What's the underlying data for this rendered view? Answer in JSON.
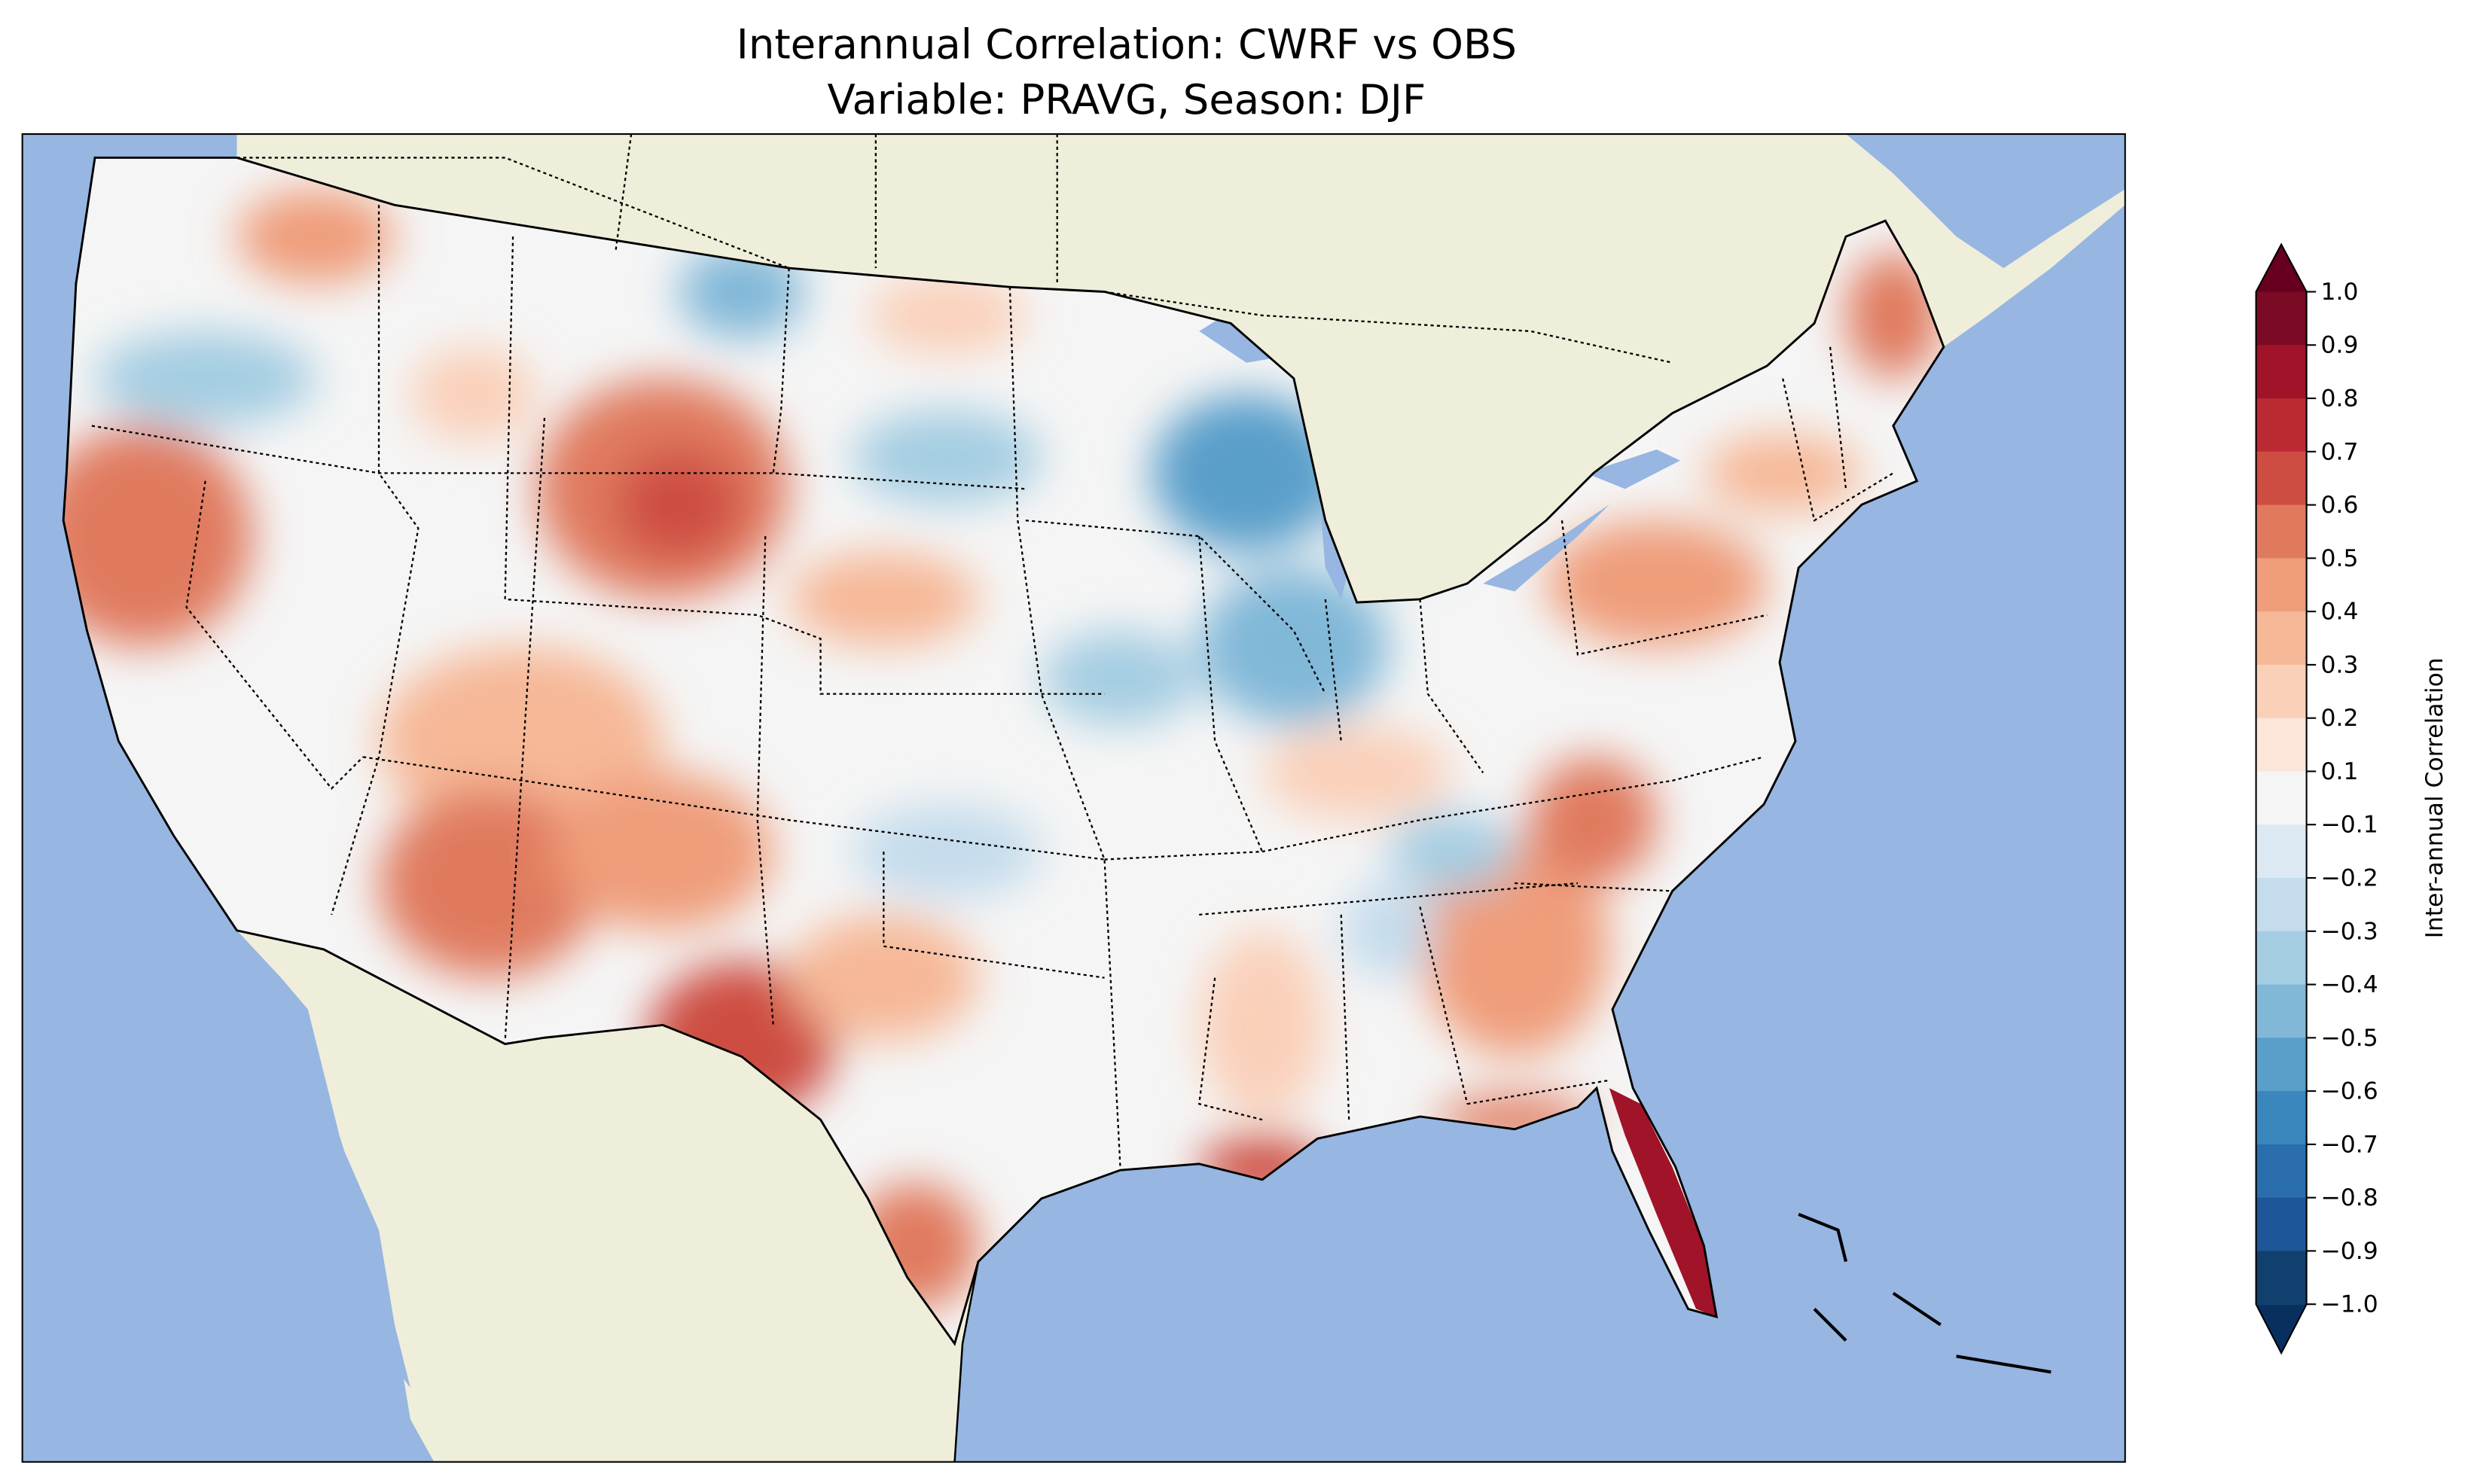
{
  "chart_data": {
    "type": "heatmap",
    "title": [
      "Interannual Correlation: CWRF vs OBS",
      "Variable: PRAVG, Season: DJF"
    ],
    "variable": "PRAVG",
    "season": "DJF",
    "colorbar": {
      "label": "Inter-annual Correlation",
      "range": [
        -1.0,
        1.0
      ],
      "extend": "both",
      "tick_labels": [
        "1.0",
        "0.9",
        "0.8",
        "0.7",
        "0.6",
        "0.5",
        "0.4",
        "0.3",
        "0.2",
        "0.1",
        "−0.1",
        "−0.2",
        "−0.3",
        "−0.4",
        "−0.5",
        "−0.6",
        "−0.7",
        "−0.8",
        "−0.9",
        "−1.0"
      ],
      "colors_top_to_bottom": [
        "#7b0a24",
        "#a11328",
        "#bb2a33",
        "#ce4d43",
        "#e07a5f",
        "#ef9d7a",
        "#f6b897",
        "#fad0b9",
        "#fce5d9",
        "#f5f5f5",
        "#dde9f2",
        "#c4dcec",
        "#a4cde2",
        "#81b8d8",
        "#5a9fca",
        "#3a86bd",
        "#2a6ead",
        "#1d5797",
        "#11406f"
      ],
      "extend_top_color": "#67001f",
      "extend_bottom_color": "#08305e"
    },
    "map_colors": {
      "ocean": "#97b6e1",
      "land": "#efeedb"
    },
    "regions_summary": [
      {
        "region": "Florida",
        "corr": 0.85
      },
      {
        "region": "Louisiana coast",
        "corr": 0.7
      },
      {
        "region": "West Texas / New Mexico",
        "corr": 0.65
      },
      {
        "region": "Wyoming",
        "corr": 0.6
      },
      {
        "region": "Northern California",
        "corr": 0.55
      },
      {
        "region": "Wisconsin",
        "corr": -0.6
      },
      {
        "region": "Illinois/Indiana",
        "corr": -0.5
      },
      {
        "region": "Eastern Montana",
        "corr": -0.45
      }
    ]
  }
}
